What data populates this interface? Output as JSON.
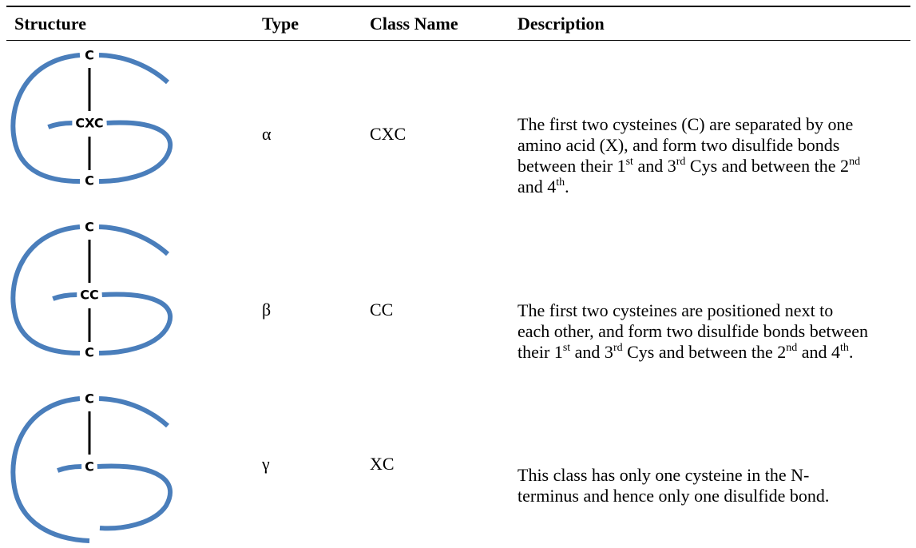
{
  "table": {
    "columns": [
      "Structure",
      "Type",
      "Class Name",
      "Description"
    ],
    "rows": [
      {
        "structure": {
          "top": "C",
          "middle": "CXC",
          "bottom": "C"
        },
        "type": "α",
        "class_name": "CXC",
        "description": [
          {
            "text": "The first two cysteines (C) are separated by one amino acid (X), and form two disulfide bonds between their 1"
          },
          {
            "sup": "st"
          },
          {
            "text": " and 3"
          },
          {
            "sup": "rd"
          },
          {
            "text": " Cys and between the 2"
          },
          {
            "sup": "nd"
          },
          {
            "text": " and 4"
          },
          {
            "sup": "th"
          },
          {
            "text": "."
          }
        ]
      },
      {
        "structure": {
          "top": "C",
          "middle": "CC",
          "bottom": "C"
        },
        "type": "β",
        "class_name": "CC",
        "description": [
          {
            "text": "The first two cysteines are positioned next to each other, and form two disulfide bonds between their 1"
          },
          {
            "sup": "st"
          },
          {
            "text": " and 3"
          },
          {
            "sup": "rd"
          },
          {
            "text": " Cys and between the 2"
          },
          {
            "sup": "nd"
          },
          {
            "text": " and 4"
          },
          {
            "sup": "th"
          },
          {
            "text": "."
          }
        ]
      },
      {
        "structure": {
          "top": "C",
          "middle": "C"
        },
        "type": "γ",
        "class_name": "XC",
        "description": [
          {
            "text": "This class has only one cysteine in the N-terminus and hence only one disulfide bond."
          }
        ]
      }
    ]
  }
}
